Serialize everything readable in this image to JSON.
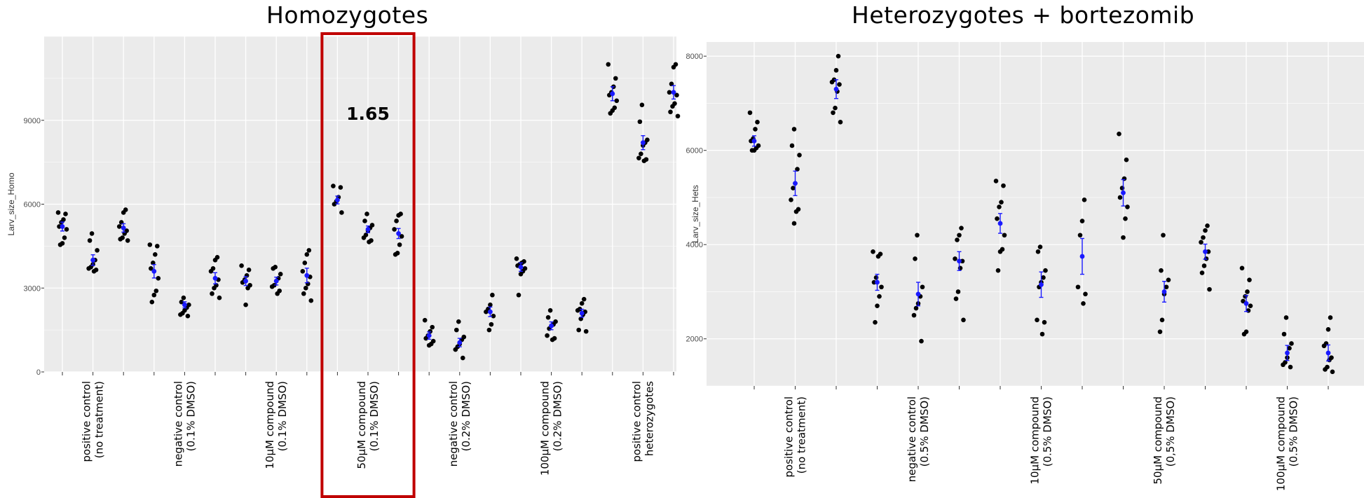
{
  "chart_data": [
    {
      "type": "scatter",
      "title": "Homozygotes",
      "xlabel": "",
      "ylabel": "Larv_size_Homo",
      "ylim": [
        0,
        12000
      ],
      "yticks": [
        0,
        3000,
        6000,
        9000
      ],
      "grid": true,
      "group_labels": [
        [
          "positive control",
          "(no treatment)"
        ],
        [
          "negative control",
          "(0.1% DMSO)"
        ],
        [
          "10μM compound",
          "(0.1% DMSO)"
        ],
        [
          "50μM compound",
          "(0.1% DMSO)"
        ],
        [
          "negative control",
          "(0.2% DMSO)"
        ],
        [
          "100μM compound",
          "(0.2% DMSO)"
        ],
        [
          "positive control",
          "heterozygotes"
        ]
      ],
      "highlight_group": 3,
      "highlight_color": "#c00000",
      "annotation": "1.65",
      "mean_color": "#1a1aff",
      "point_color": "#000000",
      "clusters": [
        {
          "group": 0,
          "mean": 5200,
          "err": 160,
          "points": [
            5700,
            5650,
            5450,
            5350,
            5200,
            5100,
            4800,
            4600,
            4550
          ]
        },
        {
          "group": 0,
          "mean": 4000,
          "err": 190,
          "points": [
            4950,
            4700,
            4350,
            4000,
            3850,
            3750,
            3700,
            3650,
            3600
          ]
        },
        {
          "group": 0,
          "mean": 5150,
          "err": 150,
          "points": [
            5800,
            5700,
            5350,
            5200,
            5050,
            4950,
            4800,
            4750,
            4700
          ]
        },
        {
          "group": 1,
          "mean": 3600,
          "err": 240,
          "points": [
            4550,
            4500,
            4200,
            3900,
            3700,
            3350,
            2900,
            2750,
            2500
          ]
        },
        {
          "group": 1,
          "mean": 2400,
          "err": 110,
          "points": [
            2650,
            2500,
            2400,
            2300,
            2200,
            2100,
            2050,
            2000
          ]
        },
        {
          "group": 1,
          "mean": 3350,
          "err": 200,
          "points": [
            4100,
            4000,
            3700,
            3600,
            3300,
            3100,
            3000,
            2800,
            2650
          ]
        },
        {
          "group": 2,
          "mean": 3250,
          "err": 160,
          "points": [
            3800,
            3650,
            3450,
            3300,
            3200,
            3100,
            3000,
            2400
          ]
        },
        {
          "group": 2,
          "mean": 3250,
          "err": 140,
          "points": [
            3750,
            3700,
            3500,
            3350,
            3250,
            3100,
            3050,
            2900,
            2800
          ]
        },
        {
          "group": 2,
          "mean": 3450,
          "err": 260,
          "points": [
            4350,
            4200,
            3900,
            3600,
            3400,
            3150,
            3000,
            2800,
            2550
          ]
        },
        {
          "group": 3,
          "mean": 6150,
          "err": 140,
          "points": [
            6650,
            6600,
            6250,
            6100,
            6000,
            5700
          ]
        },
        {
          "group": 3,
          "mean": 5100,
          "err": 120,
          "points": [
            5650,
            5400,
            5250,
            5150,
            5050,
            4900,
            4800,
            4700,
            4650
          ]
        },
        {
          "group": 3,
          "mean": 4950,
          "err": 180,
          "points": [
            5650,
            5600,
            5400,
            5100,
            4850,
            4550,
            4250,
            4200
          ]
        },
        {
          "group": 4,
          "mean": 1300,
          "err": 130,
          "points": [
            1850,
            1600,
            1450,
            1300,
            1200,
            1100,
            1000,
            950
          ]
        },
        {
          "group": 4,
          "mean": 1050,
          "err": 150,
          "points": [
            1800,
            1500,
            1250,
            1150,
            1000,
            900,
            800,
            500
          ]
        },
        {
          "group": 4,
          "mean": 2150,
          "err": 170,
          "points": [
            2750,
            2400,
            2250,
            2150,
            2000,
            1700,
            1500
          ]
        },
        {
          "group": 5,
          "mean": 3750,
          "err": 150,
          "points": [
            4050,
            3950,
            3900,
            3850,
            3800,
            3700,
            3600,
            3500,
            2750
          ]
        },
        {
          "group": 5,
          "mean": 1650,
          "err": 140,
          "points": [
            2200,
            1950,
            1800,
            1700,
            1650,
            1550,
            1300,
            1200,
            1150
          ]
        },
        {
          "group": 5,
          "mean": 2100,
          "err": 140,
          "points": [
            2600,
            2450,
            2250,
            2200,
            2150,
            2050,
            1900,
            1500,
            1450
          ]
        },
        {
          "group": 6,
          "mean": 9950,
          "err": 250,
          "points": [
            11000,
            10500,
            10200,
            10000,
            9900,
            9700,
            9450,
            9350,
            9250
          ]
        },
        {
          "group": 6,
          "mean": 8200,
          "err": 250,
          "points": [
            9550,
            8950,
            8300,
            8200,
            8100,
            7800,
            7650,
            7600,
            7550
          ]
        },
        {
          "group": 6,
          "mean": 10000,
          "err": 240,
          "points": [
            11000,
            10900,
            10300,
            10000,
            9900,
            9600,
            9500,
            9300,
            9150
          ]
        }
      ]
    },
    {
      "type": "scatter",
      "title": "Heterozygotes + bortezomib",
      "xlabel": "",
      "ylabel": "Larv_size_Hets",
      "ylim": [
        1000,
        8300
      ],
      "yticks": [
        2000,
        4000,
        6000,
        8000
      ],
      "grid": true,
      "group_labels": [
        [
          "positive control",
          "(no treatment)"
        ],
        [
          "negative control",
          "(0.5% DMSO)"
        ],
        [
          "10μM compound",
          "(0.5% DMSO)"
        ],
        [
          "50μM compound",
          "(0,5% DMSO)"
        ],
        [
          "100μM compound",
          "(0.5% DMSO)"
        ]
      ],
      "mean_color": "#1a1aff",
      "point_color": "#000000",
      "clusters": [
        {
          "group": 0,
          "mean": 6200,
          "err": 110,
          "points": [
            6800,
            6600,
            6450,
            6250,
            6200,
            6100,
            6050,
            6000,
            6000
          ]
        },
        {
          "group": 0,
          "mean": 5300,
          "err": 260,
          "points": [
            6450,
            6100,
            5900,
            5600,
            5300,
            5200,
            4950,
            4750,
            4700,
            4450
          ]
        },
        {
          "group": 0,
          "mean": 7300,
          "err": 200,
          "points": [
            8000,
            7700,
            7500,
            7450,
            7400,
            7250,
            6900,
            6800,
            6600
          ]
        },
        {
          "group": 1,
          "mean": 3200,
          "err": 170,
          "points": [
            3850,
            3800,
            3750,
            3300,
            3200,
            3100,
            2900,
            2700,
            2350
          ]
        },
        {
          "group": 1,
          "mean": 2950,
          "err": 250,
          "points": [
            4200,
            3700,
            3100,
            2900,
            2750,
            2650,
            2500,
            1950
          ]
        },
        {
          "group": 1,
          "mean": 3650,
          "err": 200,
          "points": [
            4350,
            4200,
            4100,
            3700,
            3650,
            3500,
            3000,
            2850,
            2400
          ]
        },
        {
          "group": 2,
          "mean": 4450,
          "err": 210,
          "points": [
            5350,
            5250,
            4900,
            4800,
            4550,
            4200,
            3900,
            3850,
            3450
          ]
        },
        {
          "group": 2,
          "mean": 3150,
          "err": 270,
          "points": [
            3950,
            3850,
            3450,
            3300,
            3200,
            3100,
            2400,
            2350,
            2100
          ]
        },
        {
          "group": 2,
          "mean": 3750,
          "err": 380,
          "points": [
            4950,
            4500,
            4200,
            3100,
            2950,
            2750
          ]
        },
        {
          "group": 3,
          "mean": 5100,
          "err": 280,
          "points": [
            6350,
            5800,
            5400,
            5200,
            5000,
            4800,
            4550,
            4150
          ]
        },
        {
          "group": 3,
          "mean": 3000,
          "err": 220,
          "points": [
            4200,
            3450,
            3250,
            3100,
            2950,
            2400,
            2150
          ]
        },
        {
          "group": 3,
          "mean": 3850,
          "err": 160,
          "points": [
            4400,
            4300,
            4150,
            4050,
            3850,
            3700,
            3550,
            3400,
            3050
          ]
        },
        {
          "group": 4,
          "mean": 2750,
          "err": 170,
          "points": [
            3500,
            3250,
            3000,
            2900,
            2800,
            2700,
            2600,
            2150,
            2100
          ]
        },
        {
          "group": 4,
          "mean": 1700,
          "err": 160,
          "points": [
            2450,
            2100,
            1900,
            1800,
            1600,
            1500,
            1450,
            1400
          ]
        },
        {
          "group": 4,
          "mean": 1700,
          "err": 170,
          "points": [
            2450,
            2200,
            1900,
            1850,
            1600,
            1550,
            1400,
            1350,
            1300
          ]
        }
      ]
    }
  ]
}
